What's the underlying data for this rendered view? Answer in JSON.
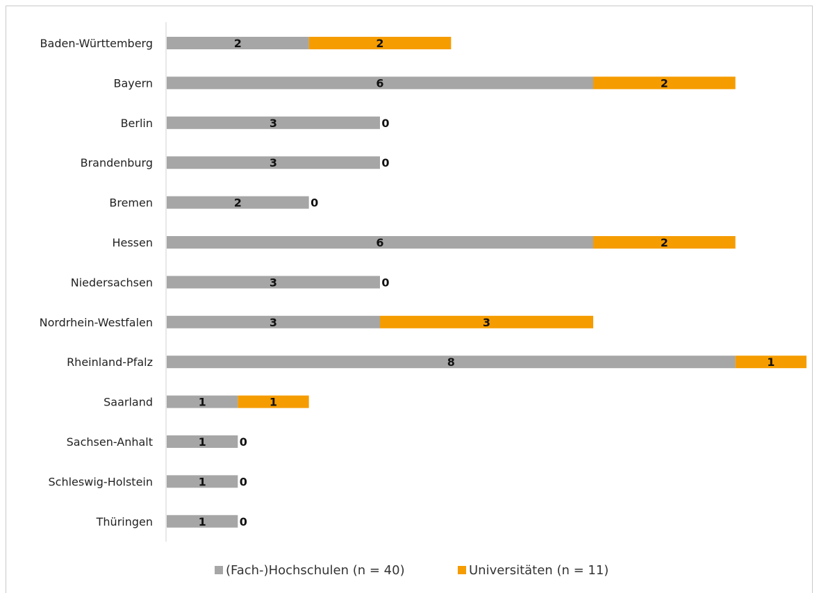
{
  "chart_data": {
    "type": "bar",
    "orientation": "horizontal",
    "stacked": true,
    "categories": [
      "Baden-Württemberg",
      "Bayern",
      "Berlin",
      "Brandenburg",
      "Bremen",
      "Hessen",
      "Niedersachsen",
      "Nordrhein-Westfalen",
      "Rheinland-Pfalz",
      "Saarland",
      "Sachsen-Anhalt",
      "Schleswig-Holstein",
      "Thüringen"
    ],
    "series": [
      {
        "name": "(Fach-)Hochschulen (n = 40)",
        "color": "#a6a6a6",
        "values": [
          2,
          6,
          3,
          3,
          2,
          6,
          3,
          3,
          8,
          1,
          1,
          1,
          1
        ]
      },
      {
        "name": "Universitäten (n = 11)",
        "color": "#f59c00",
        "values": [
          2,
          2,
          0,
          0,
          0,
          2,
          0,
          3,
          1,
          1,
          0,
          0,
          0
        ]
      }
    ],
    "xlim": [
      0,
      9
    ],
    "grid": false,
    "data_labels": true,
    "legend_position": "bottom"
  }
}
